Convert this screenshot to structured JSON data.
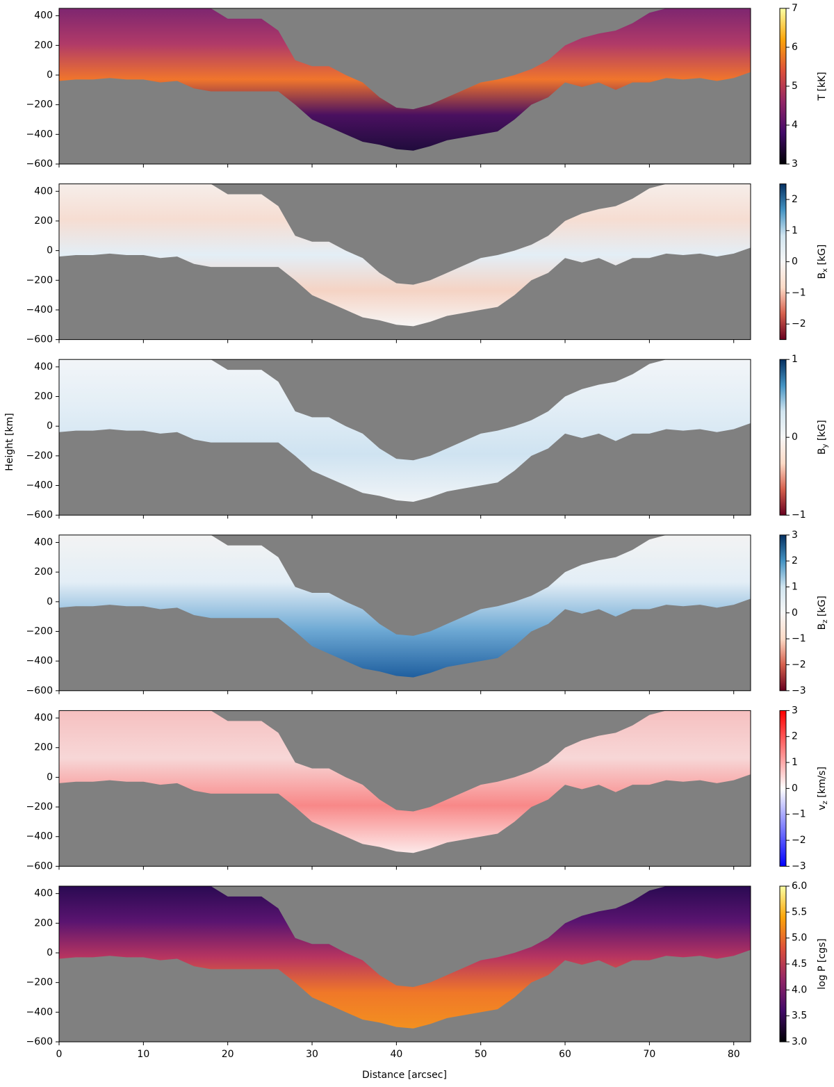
{
  "x_label": "Distance [arcsec]",
  "y_label": "Height [km]",
  "mask": {
    "x": [
      0,
      2,
      4,
      6,
      8,
      10,
      12,
      14,
      16,
      18,
      20,
      22,
      24,
      26,
      28,
      30,
      32,
      34,
      36,
      38,
      40,
      42,
      44,
      46,
      48,
      50,
      52,
      54,
      56,
      58,
      60,
      62,
      64,
      66,
      68,
      70,
      72,
      74,
      76,
      78,
      80,
      82
    ],
    "top": [
      450,
      450,
      450,
      450,
      450,
      450,
      450,
      450,
      450,
      450,
      380,
      380,
      380,
      300,
      100,
      60,
      60,
      0,
      -50,
      -150,
      -220,
      -230,
      -200,
      -150,
      -100,
      -50,
      -30,
      0,
      40,
      100,
      200,
      250,
      280,
      300,
      350,
      420,
      450,
      450,
      450,
      450,
      450,
      450
    ],
    "bottom": [
      -40,
      -30,
      -30,
      -20,
      -30,
      -30,
      -50,
      -40,
      -90,
      -110,
      -110,
      -110,
      -110,
      -110,
      -200,
      -300,
      -350,
      -400,
      -450,
      -470,
      -500,
      -510,
      -480,
      -440,
      -420,
      -400,
      -380,
      -300,
      -200,
      -150,
      -50,
      -80,
      -50,
      -100,
      -50,
      -50,
      -20,
      -30,
      -20,
      -40,
      -20,
      20
    ]
  },
  "chart_data": [
    {
      "type": "heatmap",
      "xlim": [
        0,
        82
      ],
      "ylim": [
        -600,
        450
      ],
      "xticks": [
        0,
        10,
        20,
        30,
        40,
        50,
        60,
        70,
        80
      ],
      "yticks": [
        {
          "value": -600,
          "label": "−600"
        },
        {
          "value": -400,
          "label": "−400"
        },
        {
          "value": -200,
          "label": "−200"
        },
        0,
        200,
        400
      ],
      "fill": [
        "#7e2670",
        "#b03a68",
        "#f0752c",
        "#4a1060",
        "#200c3c"
      ],
      "colorbar": {
        "label": {
          "base": "T [kK]"
        },
        "clim": [
          3,
          7
        ],
        "cticks": [
          3,
          4,
          5,
          6,
          7
        ],
        "cmap": [
          "#000004",
          "#420a68",
          "#932667",
          "#dd513a",
          "#fca50a",
          "#fcffa4"
        ]
      }
    },
    {
      "type": "heatmap",
      "xlim": [
        0,
        82
      ],
      "ylim": [
        -600,
        450
      ],
      "xticks": [
        0,
        10,
        20,
        30,
        40,
        50,
        60,
        70,
        80
      ],
      "yticks": [
        {
          "value": -600,
          "label": "−600"
        },
        {
          "value": -400,
          "label": "−400"
        },
        {
          "value": -200,
          "label": "−200"
        },
        0,
        200,
        400
      ],
      "fill": [
        "#f6eeea",
        "#f6ddd2",
        "#e3eef6",
        "#f5d3c4",
        "#f7f5f4"
      ],
      "colorbar": {
        "label": {
          "base": "B",
          "sub": "x",
          "unit": " [kG]"
        },
        "clim": [
          -2.5,
          2.5
        ],
        "cticks": [
          {
            "value": -2,
            "label": "−2"
          },
          {
            "value": -1,
            "label": "−1"
          },
          0,
          1,
          2
        ],
        "cmap": [
          "#67001f",
          "#d6604d",
          "#fddbc7",
          "#f7f7f7",
          "#d1e5f0",
          "#4393c3",
          "#053061"
        ]
      }
    },
    {
      "type": "heatmap",
      "xlim": [
        0,
        82
      ],
      "ylim": [
        -600,
        450
      ],
      "xticks": [
        0,
        10,
        20,
        30,
        40,
        50,
        60,
        70,
        80
      ],
      "yticks": [
        {
          "value": -600,
          "label": "−600"
        },
        {
          "value": -400,
          "label": "−400"
        },
        {
          "value": -200,
          "label": "−200"
        },
        0,
        200,
        400
      ],
      "fill": [
        "#f2f5f8",
        "#e3eef6",
        "#cfe3f1",
        "#f0f4f7"
      ],
      "colorbar": {
        "label": {
          "base": "B",
          "sub": "y",
          "unit": " [kG]"
        },
        "clim": [
          -1,
          1
        ],
        "cticks": [
          {
            "value": -1,
            "label": "−1"
          },
          0,
          1
        ],
        "cmap": [
          "#67001f",
          "#d6604d",
          "#fddbc7",
          "#f7f7f7",
          "#d1e5f0",
          "#4393c3",
          "#053061"
        ]
      }
    },
    {
      "type": "heatmap",
      "xlim": [
        0,
        82
      ],
      "ylim": [
        -600,
        450
      ],
      "xticks": [
        0,
        10,
        20,
        30,
        40,
        50,
        60,
        70,
        80
      ],
      "yticks": [
        {
          "value": -600,
          "label": "−600"
        },
        {
          "value": -400,
          "label": "−400"
        },
        {
          "value": -200,
          "label": "−200"
        },
        0,
        200,
        400
      ],
      "fill": [
        "#f3f3f3",
        "#e3eef6",
        "#6ea9d4",
        "#1f5f9f"
      ],
      "colorbar": {
        "label": {
          "base": "B",
          "sub": "z",
          "unit": " [kG]"
        },
        "clim": [
          -3,
          3
        ],
        "cticks": [
          {
            "value": -3,
            "label": "−3"
          },
          {
            "value": -2,
            "label": "−2"
          },
          {
            "value": -1,
            "label": "−1"
          },
          0,
          1,
          2,
          3
        ],
        "cmap": [
          "#67001f",
          "#d6604d",
          "#fddbc7",
          "#f7f7f7",
          "#d1e5f0",
          "#4393c3",
          "#053061"
        ]
      }
    },
    {
      "type": "heatmap",
      "xlim": [
        0,
        82
      ],
      "ylim": [
        -600,
        450
      ],
      "xticks": [
        0,
        10,
        20,
        30,
        40,
        50,
        60,
        70,
        80
      ],
      "yticks": [
        {
          "value": -600,
          "label": "−600"
        },
        {
          "value": -400,
          "label": "−400"
        },
        {
          "value": -200,
          "label": "−200"
        },
        0,
        200,
        400
      ],
      "fill": [
        "#f6c0c0",
        "#f7d7d7",
        "#f88888",
        "#fde9e9"
      ],
      "colorbar": {
        "label": {
          "base": "v",
          "sub": "z",
          "unit": " [km/s]"
        },
        "clim": [
          -3,
          3
        ],
        "cticks": [
          {
            "value": -3,
            "label": "−3"
          },
          {
            "value": -2,
            "label": "−2"
          },
          {
            "value": -1,
            "label": "−1"
          },
          0,
          1,
          2,
          3
        ],
        "cmap": [
          "#0000ff",
          "#ffffff",
          "#ff0000"
        ]
      }
    },
    {
      "type": "heatmap",
      "xlim": [
        0,
        82
      ],
      "ylim": [
        -600,
        450
      ],
      "xticks": [
        0,
        10,
        20,
        30,
        40,
        50,
        60,
        70,
        80
      ],
      "yticks": [
        {
          "value": -600,
          "label": "−600"
        },
        {
          "value": -400,
          "label": "−400"
        },
        {
          "value": -200,
          "label": "−200"
        },
        0,
        200,
        400
      ],
      "fill": [
        "#2a0a52",
        "#5a1470",
        "#b83560",
        "#f07828",
        "#f39020"
      ],
      "colorbar": {
        "label": {
          "base": "log P [cgs]"
        },
        "clim": [
          3,
          6
        ],
        "cticks": [
          {
            "value": 3,
            "label": "3.0"
          },
          3.5,
          {
            "value": 4,
            "label": "4.0"
          },
          4.5,
          {
            "value": 5,
            "label": "5.0"
          },
          5.5,
          {
            "value": 6,
            "label": "6.0"
          }
        ],
        "cmap": [
          "#000004",
          "#420a68",
          "#932667",
          "#dd513a",
          "#fca50a",
          "#fcffa4"
        ]
      }
    }
  ]
}
